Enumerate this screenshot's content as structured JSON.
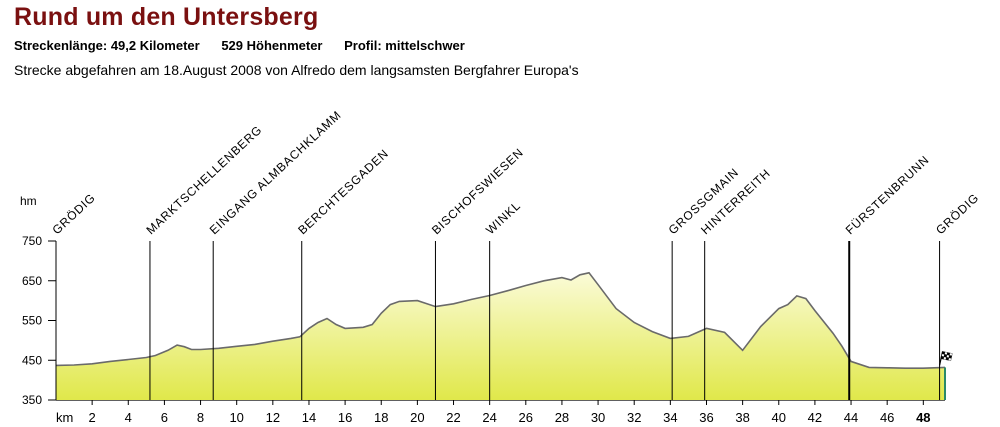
{
  "header": {
    "title": "Rund um den Untersberg",
    "stats": {
      "length": "Streckenlänge: 49,2 Kilometer",
      "elevation": "529 Höhenmeter",
      "profile": "Profil: mittelschwer"
    },
    "subtitle": "Strecke abgefahren am 18.August 2008 von Alfredo dem langsamsten Bergfahrer Europa's"
  },
  "chart_data": {
    "type": "area",
    "ylabel": "hm",
    "xlabel": "km",
    "ylim": [
      350,
      750
    ],
    "xlim": [
      0,
      49.2
    ],
    "y_ticks": [
      350,
      450,
      550,
      650,
      750
    ],
    "x_ticks": [
      2,
      4,
      6,
      8,
      10,
      12,
      14,
      16,
      18,
      20,
      22,
      24,
      26,
      28,
      30,
      32,
      34,
      36,
      38,
      40,
      42,
      44,
      46,
      48
    ],
    "fill_top": "#fbfbd8",
    "fill_bottom": "#e0e84a",
    "line_color": "#6a6a6a",
    "series": [
      {
        "x": [
          0,
          1,
          2,
          3,
          4,
          5,
          5.5,
          6.2,
          6.7,
          7.1,
          7.5,
          8,
          9,
          10,
          11,
          12,
          13,
          13.5,
          14,
          14.5,
          15,
          15.5,
          16,
          17,
          17.5,
          18,
          18.5,
          19,
          20,
          21,
          22,
          23,
          24,
          25,
          26,
          27,
          28,
          28.5,
          29,
          29.5,
          30,
          31,
          32,
          33,
          34,
          35,
          36,
          37,
          38,
          39,
          40,
          40.5,
          41,
          41.5,
          42,
          43,
          43.5,
          44,
          45,
          46,
          47,
          48,
          49.2
        ],
        "y": [
          437,
          438,
          441,
          447,
          452,
          457,
          462,
          475,
          488,
          484,
          477,
          477,
          480,
          485,
          490,
          498,
          505,
          509,
          530,
          545,
          555,
          540,
          530,
          533,
          540,
          568,
          590,
          598,
          600,
          585,
          592,
          603,
          613,
          625,
          638,
          650,
          658,
          652,
          665,
          670,
          640,
          580,
          545,
          522,
          505,
          510,
          530,
          520,
          475,
          535,
          580,
          590,
          612,
          605,
          575,
          518,
          485,
          447,
          432,
          431,
          430,
          430,
          432
        ]
      }
    ],
    "markers": [
      {
        "km": 0,
        "label": "Grödig"
      },
      {
        "km": 5.2,
        "label": "Marktschellenberg"
      },
      {
        "km": 8.7,
        "label": "Eingang Almbachklamm"
      },
      {
        "km": 13.6,
        "label": "Berchtesgaden"
      },
      {
        "km": 21,
        "label": "Bischofswiesen"
      },
      {
        "km": 24,
        "label": "Winkl"
      },
      {
        "km": 34.1,
        "label": "Grossgmain"
      },
      {
        "km": 35.9,
        "label": "Hinterreith"
      },
      {
        "km": 43.9,
        "label": "Fürstenbrunn"
      },
      {
        "km": 48.9,
        "label": "Grödig"
      }
    ]
  }
}
